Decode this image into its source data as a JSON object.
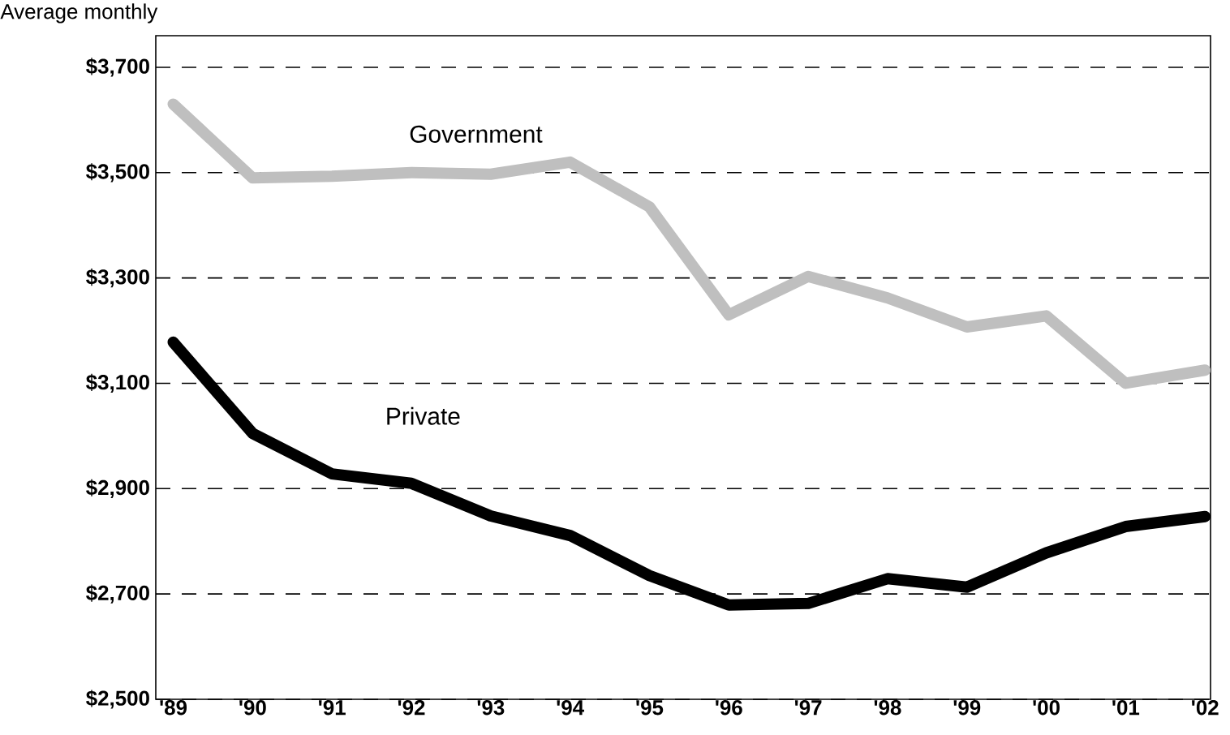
{
  "chart_data": {
    "type": "line",
    "title": "Average monthly",
    "categories": [
      "'89",
      "'90",
      "'91",
      "'92",
      "'93",
      "'94",
      "'95",
      "'96",
      "'97",
      "'98",
      "'99",
      "'00",
      "'01",
      "'02"
    ],
    "series": [
      {
        "name": "Government",
        "color": "#bfbfbf",
        "values": [
          3630,
          3490,
          3493,
          3500,
          3497,
          3520,
          3435,
          3230,
          3303,
          3262,
          3207,
          3228,
          3100,
          3125
        ]
      },
      {
        "name": "Private",
        "color": "#000000",
        "values": [
          3178,
          3005,
          2928,
          2910,
          2848,
          2811,
          2735,
          2679,
          2682,
          2729,
          2713,
          2778,
          2828,
          2847
        ]
      }
    ],
    "ylim": [
      2500,
      3760
    ],
    "yticks": [
      {
        "value": 2500,
        "label": "$2,500"
      },
      {
        "value": 2700,
        "label": "$2,700"
      },
      {
        "value": 2900,
        "label": "$2,900"
      },
      {
        "value": 3100,
        "label": "$3,100"
      },
      {
        "value": 3300,
        "label": "$3,300"
      },
      {
        "value": 3500,
        "label": "$3,500"
      },
      {
        "value": 3700,
        "label": "$3,700"
      }
    ],
    "grid": "y",
    "line_style": "solid",
    "marker": "none"
  }
}
